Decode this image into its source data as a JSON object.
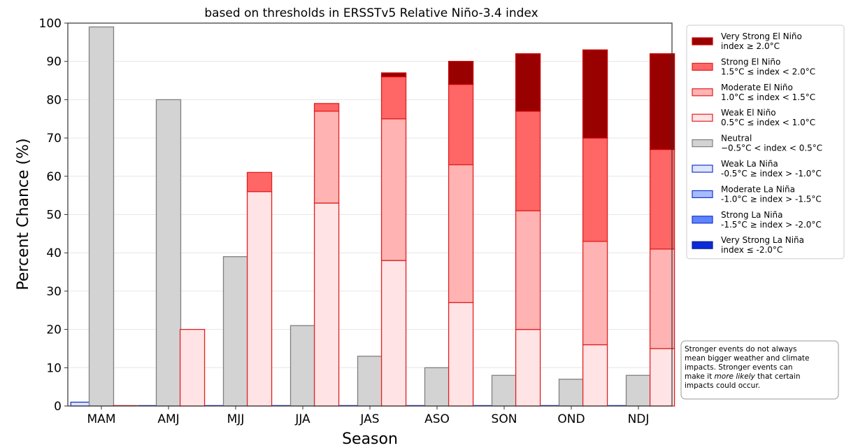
{
  "chart_data": {
    "type": "bar",
    "stacked": true,
    "title": "based on thresholds in ERSSTv5 Relative Niño-3.4 index",
    "xlabel": "Season",
    "ylabel": "Percent Chance (%)",
    "ylim": [
      0,
      100
    ],
    "yticks": [
      "0",
      "10",
      "20",
      "30",
      "40",
      "50",
      "60",
      "70",
      "80",
      "90",
      "100"
    ],
    "grid": "horizontal",
    "categories": [
      "MAM",
      "AMJ",
      "MJJ",
      "JJA",
      "JAS",
      "ASO",
      "SON",
      "OND",
      "NDJ"
    ],
    "la_nina_bar": {
      "series": [
        {
          "key": "weak_la_nina",
          "values": [
            1,
            0,
            0,
            0,
            0,
            0,
            0,
            0,
            0
          ]
        },
        {
          "key": "moderate_la_nina",
          "values": [
            0,
            0,
            0,
            0,
            0,
            0,
            0,
            0,
            0
          ]
        },
        {
          "key": "strong_la_nina",
          "values": [
            0,
            0,
            0,
            0,
            0,
            0,
            0,
            0,
            0
          ]
        },
        {
          "key": "very_strong_la_nina",
          "values": [
            0,
            0,
            0,
            0,
            0,
            0,
            0,
            0,
            0
          ]
        }
      ]
    },
    "neutral_bar": {
      "series": [
        {
          "key": "neutral",
          "values": [
            99,
            80,
            39,
            21,
            13,
            10,
            8,
            7,
            8
          ]
        }
      ]
    },
    "el_nino_bar": {
      "series": [
        {
          "key": "weak_el_nino",
          "values": [
            0,
            20,
            56,
            53,
            38,
            27,
            20,
            16,
            15
          ]
        },
        {
          "key": "moderate_el_nino",
          "values": [
            0,
            0,
            0,
            24,
            37,
            36,
            31,
            27,
            26
          ]
        },
        {
          "key": "strong_el_nino",
          "values": [
            0,
            0,
            5,
            2,
            11,
            21,
            26,
            27,
            26
          ]
        },
        {
          "key": "very_strong_el_nino",
          "values": [
            0,
            0,
            0,
            0,
            1,
            6,
            15,
            23,
            25
          ]
        }
      ]
    },
    "legend": {
      "position": "right",
      "entries": [
        {
          "key": "very_strong_el_nino",
          "line1": "Very Strong El Niño",
          "line2": "index ≥ 2.0°C",
          "fill": "#990000",
          "stroke": "#cc0000"
        },
        {
          "key": "strong_el_nino",
          "line1": "Strong El Niño",
          "line2": "1.5°C ≤ index < 2.0°C",
          "fill": "#ff6666",
          "stroke": "#e02020"
        },
        {
          "key": "moderate_el_nino",
          "line1": "Moderate El Niño",
          "line2": "1.0°C ≤ index < 1.5°C",
          "fill": "#ffb3b3",
          "stroke": "#e02020"
        },
        {
          "key": "weak_el_nino",
          "line1": "Weak El Niño",
          "line2": "0.5°C ≤ index < 1.0°C",
          "fill": "#ffe3e5",
          "stroke": "#e02020"
        },
        {
          "key": "neutral",
          "line1": "Neutral",
          "line2": "−0.5°C < index < 0.5°C",
          "fill": "#d3d3d3",
          "stroke": "#808080"
        },
        {
          "key": "weak_la_nina",
          "line1": "Weak La Niña",
          "line2": "-0.5°C ≥ index > -1.0°C",
          "fill": "#dde6ff",
          "stroke": "#1a33cc"
        },
        {
          "key": "moderate_la_nina",
          "line1": "Moderate La Niña",
          "line2": "-1.0°C ≥ index > -1.5°C",
          "fill": "#a6bcff",
          "stroke": "#1a33cc"
        },
        {
          "key": "strong_la_nina",
          "line1": "Strong La Niña",
          "line2": "-1.5°C ≥ index > -2.0°C",
          "fill": "#5c85ff",
          "stroke": "#1a33cc"
        },
        {
          "key": "very_strong_la_nina",
          "line1": "Very Strong La Niña",
          "line2": "index ≤ -2.0°C",
          "fill": "#0a2bd6",
          "stroke": "#0a1f99"
        }
      ]
    },
    "annotation": {
      "lines": [
        {
          "text": "Stronger events do not always"
        },
        {
          "text": "mean bigger weather and climate"
        },
        {
          "text": "impacts. Stronger events can"
        },
        {
          "prefix": "make it ",
          "italic": "more likely",
          "suffix": " that certain"
        },
        {
          "text": "impacts could occur."
        }
      ]
    }
  }
}
